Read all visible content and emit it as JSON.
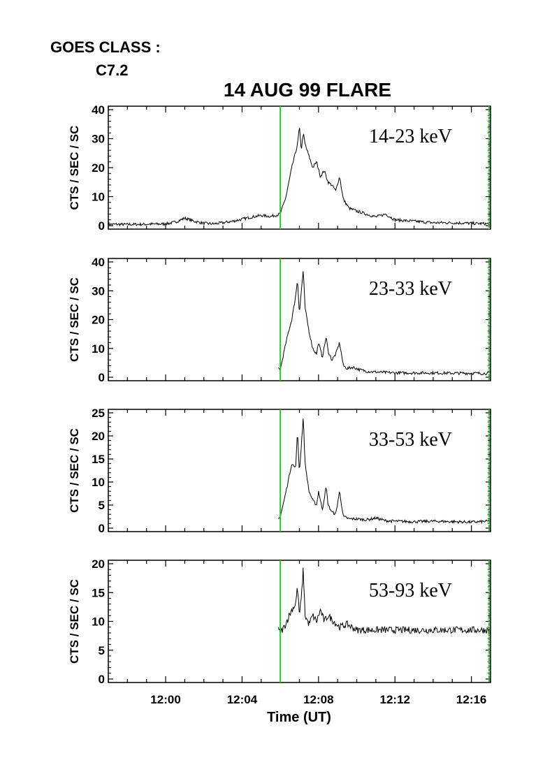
{
  "header": {
    "goes_label": "GOES CLASS :",
    "goes_value": "C7.2",
    "title": "14 AUG 99 FLARE"
  },
  "colors": {
    "trace": "#000000",
    "marker": "#22cc22",
    "axis": "#000000"
  },
  "chart_data": {
    "type": "line",
    "title": "14 AUG 99 FLARE",
    "xlabel": "Time (UT)",
    "ylabel": "CTS / SEC / SC",
    "xlim": [
      "11:57",
      "12:17"
    ],
    "x_ticks": [
      "12:00",
      "12:04",
      "12:08",
      "12:12",
      "12:16"
    ],
    "grid": false,
    "vertical_markers": [
      "12:06",
      "12:17"
    ],
    "panels": [
      {
        "name": "14-23 keV",
        "ylim": [
          0,
          40
        ],
        "y_ticks": [
          0,
          10,
          20,
          30,
          40
        ],
        "x_minutes": [
          -3,
          -2,
          -1,
          0,
          0.5,
          1,
          1.5,
          2,
          2.5,
          3,
          3.5,
          4,
          4.5,
          5,
          5.5,
          6,
          6.3,
          6.6,
          6.9,
          7.0,
          7.1,
          7.2,
          7.3,
          7.5,
          7.7,
          7.9,
          8.1,
          8.3,
          8.5,
          8.7,
          8.9,
          9.1,
          9.3,
          9.6,
          10,
          10.5,
          11,
          11.5,
          12,
          13,
          14,
          15,
          16,
          17
        ],
        "values": [
          0.5,
          0.4,
          0.5,
          0.6,
          1.2,
          2.6,
          1.5,
          0.8,
          0.6,
          1.0,
          1.5,
          2.2,
          3.0,
          3.5,
          3.2,
          4.0,
          10,
          20,
          28,
          34,
          26,
          32,
          28,
          24,
          20,
          22,
          17,
          19,
          15,
          14,
          12,
          17,
          9,
          6,
          5,
          4,
          3,
          4,
          2,
          1.5,
          1,
          1,
          0.8,
          0.6
        ]
      },
      {
        "name": "23-33 keV",
        "ylim": [
          0,
          40
        ],
        "y_ticks": [
          0,
          10,
          20,
          30,
          40
        ],
        "x_minutes": [
          5.9,
          6.0,
          6.2,
          6.4,
          6.6,
          6.8,
          6.9,
          7.0,
          7.1,
          7.2,
          7.3,
          7.5,
          7.7,
          7.9,
          8.0,
          8.2,
          8.4,
          8.5,
          8.7,
          8.9,
          9.1,
          9.3,
          9.5,
          9.8,
          10.2,
          10.6,
          11,
          12,
          13,
          14,
          15,
          16,
          17
        ],
        "values": [
          3,
          2.5,
          9,
          15,
          20,
          28,
          34,
          22,
          30,
          37,
          24,
          16,
          10,
          8,
          12,
          7,
          14,
          9,
          6,
          8,
          12,
          4,
          3,
          3.5,
          2.5,
          2,
          1.8,
          1.5,
          1.5,
          1.5,
          1.4,
          1.4,
          1.3
        ]
      },
      {
        "name": "33-53 keV",
        "ylim": [
          0,
          25
        ],
        "y_ticks": [
          0,
          5,
          10,
          15,
          20,
          25
        ],
        "x_minutes": [
          5.9,
          6.0,
          6.2,
          6.4,
          6.6,
          6.8,
          6.9,
          7.0,
          7.1,
          7.2,
          7.3,
          7.5,
          7.7,
          7.9,
          8.0,
          8.2,
          8.4,
          8.5,
          8.7,
          8.9,
          9.1,
          9.3,
          9.6,
          10,
          10.5,
          11,
          11.5,
          12,
          13,
          14,
          15,
          16,
          17
        ],
        "values": [
          2,
          2.5,
          6,
          10,
          14,
          13,
          21,
          12,
          18,
          24,
          14,
          8,
          6,
          5,
          8,
          4,
          9,
          5,
          3.5,
          3,
          8,
          2.5,
          2,
          2,
          1.8,
          2.2,
          1.6,
          1.5,
          1.4,
          1.5,
          1.4,
          1.3,
          1.5
        ]
      },
      {
        "name": "53-93 keV",
        "ylim": [
          0,
          20
        ],
        "y_ticks": [
          0,
          5,
          10,
          15,
          20
        ],
        "x_minutes": [
          5.9,
          6.0,
          6.2,
          6.4,
          6.6,
          6.8,
          6.9,
          7.0,
          7.1,
          7.2,
          7.3,
          7.5,
          7.7,
          7.9,
          8.1,
          8.3,
          8.5,
          8.8,
          9.1,
          9.5,
          10,
          11,
          12,
          13,
          14,
          15,
          16,
          17
        ],
        "values": [
          8.5,
          8,
          9,
          10.5,
          12,
          13,
          16,
          11,
          14,
          19,
          11,
          9.5,
          11,
          10,
          12,
          10,
          11,
          10,
          9,
          9.5,
          8.5,
          8.5,
          8.5,
          8.5,
          8.5,
          8.5,
          8.5,
          8.5
        ]
      }
    ]
  }
}
